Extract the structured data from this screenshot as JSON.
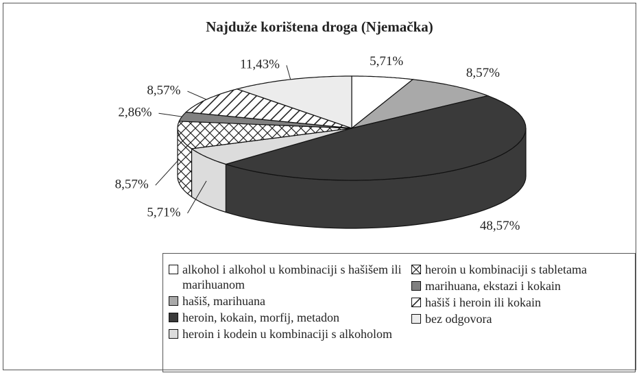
{
  "chart_data": {
    "type": "pie3d",
    "title": "Najduže korištena droga (Njemačka)",
    "categories": [
      "alkohol i alkohol u kombinaciji s hašišem ili marihuanom",
      "hašiš, marihuana",
      "heroin, kokain, morfij, metadon",
      "heroin i kodein u kombinaciji s alkoholom",
      "heroin u kombinaciji s tabletama",
      "marihuana, ekstazi i kokain",
      "hašiš i heroin ili kokain",
      "bez odgovora"
    ],
    "values": [
      5.71,
      8.57,
      48.57,
      5.71,
      8.57,
      2.86,
      8.57,
      11.43
    ],
    "value_labels": [
      "5,71%",
      "8,57%",
      "48,57%",
      "5,71%",
      "8,57%",
      "2,86%",
      "8,57%",
      "11,43%"
    ],
    "colors": [
      "#ffffff",
      "#a9a9a9",
      "#3a3a3a",
      "#dcdcdc",
      "#ffffff",
      "#808080",
      "#ffffff",
      "#ececec"
    ],
    "hatch": [
      null,
      null,
      null,
      null,
      "cross",
      null,
      "diagonal",
      null
    ]
  }
}
